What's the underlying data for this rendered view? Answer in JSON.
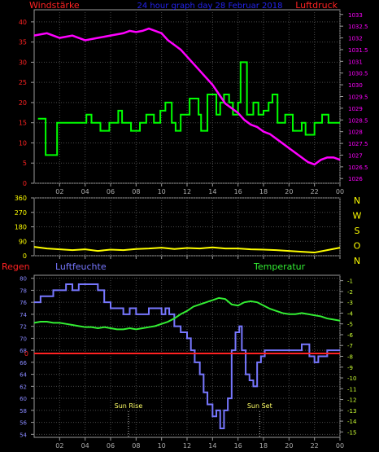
{
  "chart_data": [
    {
      "type": "line",
      "title": "24 hour graph day 28 Februar 2018",
      "left_axis_label": "Windstärke",
      "right_axis_label": "Luftdruck",
      "x_ticks": [
        "02",
        "04",
        "06",
        "08",
        "10",
        "12",
        "14",
        "16",
        "18",
        "20",
        "22",
        "00"
      ],
      "left_ticks": [
        "0",
        "5",
        "10",
        "15",
        "20",
        "25",
        "30",
        "35",
        "40"
      ],
      "right_ticks": [
        "1026",
        "1026.5",
        "1027",
        "1027.5",
        "1028",
        "1028.5",
        "1029",
        "1029.5",
        "1030",
        "1030.5",
        "1031",
        "1031.5",
        "1032",
        "1032.5",
        "1033"
      ],
      "left_ylim": [
        0,
        43
      ],
      "right_ylim": [
        1025.8,
        1033.2
      ],
      "series": [
        {
          "axis": "left",
          "color": "#00ff00",
          "x": [
            0.3,
            0.4,
            0.9,
            1.4,
            1.8,
            3.5,
            4.1,
            4.5,
            5.2,
            5.9,
            6.6,
            6.9,
            7.6,
            8.3,
            8.8,
            9.4,
            9.9,
            10.3,
            10.8,
            11.1,
            11.5,
            12.2,
            12.9,
            13.1,
            13.6,
            14.3,
            14.6,
            14.9,
            15.3,
            15.6,
            16.0,
            16.2,
            16.7,
            17.2,
            17.6,
            18.0,
            18.4,
            18.7,
            19.1,
            19.7,
            20.3,
            21.0,
            21.3,
            22.0,
            22.6,
            23.1,
            23.7
          ],
          "y": [
            16,
            16,
            7,
            7,
            15,
            15,
            17,
            15,
            13,
            15,
            18,
            15,
            13,
            15,
            17,
            15,
            18,
            20,
            15,
            13,
            17,
            21,
            17,
            13,
            22,
            17,
            20,
            22,
            20,
            17,
            20,
            30,
            17,
            20,
            17,
            18,
            20,
            22,
            15,
            17,
            13,
            15,
            12,
            15,
            17,
            15,
            15
          ]
        },
        {
          "axis": "right",
          "color": "#ff00ff",
          "x": [
            0,
            1,
            2,
            3,
            4,
            5,
            6,
            7,
            7.5,
            8,
            8.5,
            9,
            9.5,
            10,
            10.5,
            11,
            11.5,
            12,
            12.5,
            13,
            13.5,
            14,
            14.5,
            15,
            15.5,
            16,
            16.5,
            17,
            17.5,
            18,
            18.5,
            19,
            19.5,
            20,
            20.5,
            21,
            21.5,
            22,
            22.5,
            23,
            23.5,
            24
          ],
          "y": [
            1032.1,
            1032.2,
            1032.0,
            1032.1,
            1031.9,
            1032.0,
            1032.1,
            1032.2,
            1032.3,
            1032.25,
            1032.3,
            1032.4,
            1032.3,
            1032.2,
            1031.9,
            1031.7,
            1031.5,
            1031.2,
            1030.9,
            1030.6,
            1030.3,
            1030.0,
            1029.6,
            1029.2,
            1029.0,
            1028.8,
            1028.5,
            1028.3,
            1028.2,
            1028.0,
            1027.9,
            1027.7,
            1027.5,
            1027.3,
            1027.1,
            1026.9,
            1026.7,
            1026.6,
            1026.8,
            1026.9,
            1026.9,
            1026.8
          ]
        }
      ]
    },
    {
      "type": "line",
      "x_ticks": [
        "02",
        "04",
        "06",
        "08",
        "10",
        "12",
        "14",
        "16",
        "18",
        "20",
        "22",
        "00"
      ],
      "left_ticks": [
        "0",
        "90",
        "180",
        "270",
        "360"
      ],
      "ylim": [
        0,
        360
      ],
      "compass_labels": [
        "N",
        "W",
        "S",
        "O",
        "N"
      ],
      "series": [
        {
          "color": "#ffff00",
          "x": [
            0,
            1,
            2,
            3,
            4,
            5,
            6,
            7,
            8,
            9,
            10,
            11,
            12,
            13,
            14,
            15,
            16,
            17,
            18,
            19,
            20,
            21,
            22,
            23,
            24
          ],
          "y": [
            55,
            45,
            40,
            35,
            40,
            30,
            38,
            35,
            42,
            45,
            50,
            42,
            48,
            45,
            52,
            45,
            45,
            40,
            38,
            35,
            30,
            25,
            20,
            35,
            50
          ]
        }
      ]
    },
    {
      "type": "line",
      "left_label": "Regen",
      "humidity_label": "Luftfeuchte",
      "temperature_label": "Temperatur",
      "x_ticks": [
        "02",
        "04",
        "06",
        "08",
        "10",
        "12",
        "14",
        "16",
        "18",
        "20",
        "22",
        "00"
      ],
      "humidity_ticks": [
        "54",
        "56",
        "58",
        "60",
        "62",
        "64",
        "66",
        "68",
        "70",
        "72",
        "74",
        "76",
        "78",
        "80"
      ],
      "temperature_ticks": [
        "-15",
        "-14",
        "-13",
        "-12",
        "-11",
        "-10",
        "-9",
        "-8",
        "-7",
        "-6",
        "-5",
        "-4",
        "-3",
        "-2",
        "-1"
      ],
      "rain_tick": "0",
      "humidity_ylim": [
        53.5,
        80.5
      ],
      "temperature_ylim": [
        -15.5,
        -0.5
      ],
      "annotations": [
        {
          "text": "Sun Rise",
          "x": 7.4
        },
        {
          "text": "Sun Set",
          "x": 17.7
        }
      ],
      "series": [
        {
          "name": "Luftfeuchte",
          "color": "#7777ff",
          "x": [
            0,
            0.5,
            1,
            1.5,
            2,
            2.5,
            3,
            3.5,
            4,
            4.5,
            5,
            5.5,
            6,
            6.5,
            7,
            7.5,
            8,
            8.5,
            9,
            9.5,
            10,
            10.3,
            10.6,
            11,
            11.5,
            12,
            12.3,
            12.6,
            13,
            13.3,
            13.6,
            14,
            14.3,
            14.6,
            14.9,
            15.2,
            15.5,
            15.8,
            16.1,
            16.3,
            16.6,
            16.9,
            17.2,
            17.5,
            17.8,
            18.1,
            18.5,
            19,
            20,
            20.5,
            21,
            21.3,
            21.6,
            22,
            22.3,
            22.6,
            23,
            23.3,
            23.6,
            24
          ],
          "y": [
            76,
            77,
            77,
            78,
            78,
            79,
            78,
            79,
            79,
            79,
            78,
            76,
            75,
            75,
            74,
            75,
            74,
            74,
            75,
            75,
            74,
            75,
            74,
            72,
            71,
            70,
            68,
            66,
            64,
            61,
            59,
            57,
            58,
            55,
            58,
            60,
            68,
            71,
            72,
            68,
            64,
            63,
            62,
            66,
            67,
            68,
            68,
            68,
            68,
            68,
            69,
            69,
            67,
            66,
            67,
            67,
            68,
            68,
            68,
            68
          ]
        },
        {
          "name": "Temperatur",
          "color": "#33ee33",
          "x": [
            0,
            0.5,
            1,
            1.5,
            2,
            2.5,
            3,
            3.5,
            4,
            4.5,
            5,
            5.5,
            6,
            6.5,
            7,
            7.5,
            8,
            8.5,
            9,
            9.5,
            10,
            10.5,
            11,
            11.5,
            12,
            12.5,
            13,
            13.5,
            14,
            14.5,
            15,
            15.5,
            16,
            16.5,
            17,
            17.5,
            18,
            18.5,
            19,
            19.5,
            20,
            20.5,
            21,
            21.5,
            22,
            22.5,
            23,
            23.5,
            24
          ],
          "y": [
            -4.9,
            -4.8,
            -4.8,
            -4.9,
            -4.9,
            -5.0,
            -5.1,
            -5.2,
            -5.3,
            -5.3,
            -5.4,
            -5.3,
            -5.4,
            -5.5,
            -5.5,
            -5.4,
            -5.5,
            -5.4,
            -5.3,
            -5.2,
            -5.0,
            -4.8,
            -4.5,
            -4.1,
            -3.8,
            -3.4,
            -3.2,
            -3.0,
            -2.8,
            -2.6,
            -2.7,
            -3.2,
            -3.3,
            -3.0,
            -2.9,
            -3.0,
            -3.3,
            -3.6,
            -3.8,
            -4.0,
            -4.1,
            -4.1,
            -4.0,
            -4.1,
            -4.2,
            -4.3,
            -4.5,
            -4.6,
            -4.7
          ]
        }
      ]
    }
  ]
}
